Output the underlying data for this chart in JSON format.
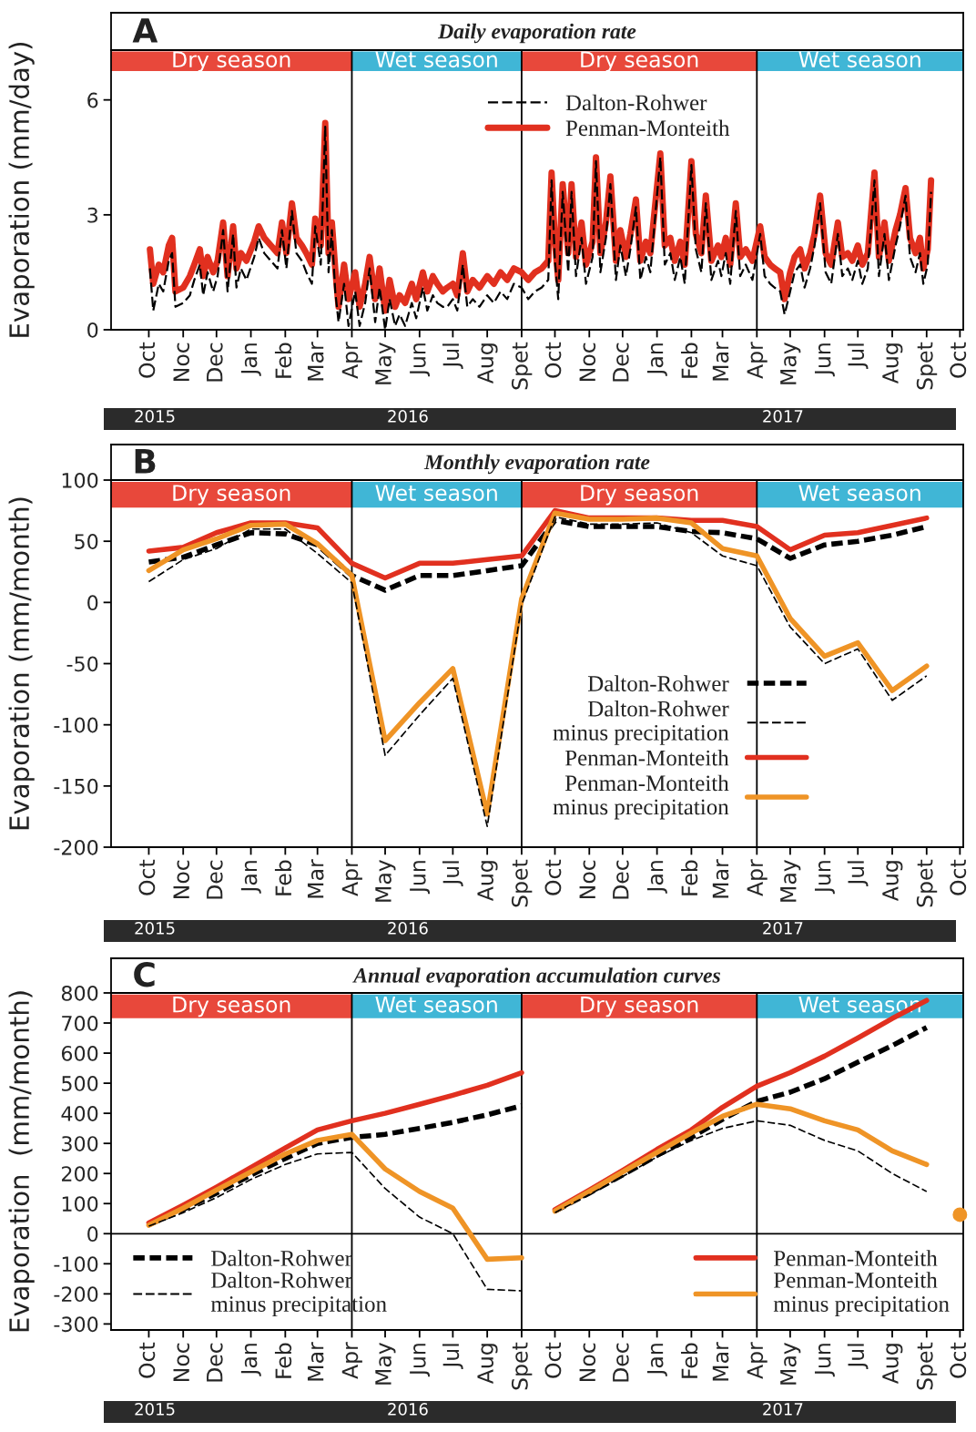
{
  "chart_data": [
    {
      "type": "line",
      "title": "Daily evaporation rate",
      "ylabel": "Evaporation (mm/day)",
      "annotations": [
        "A"
      ],
      "legend": "top right",
      "x": [
        "2015-10-02",
        "2015-10-05",
        "2015-10-10",
        "2015-10-14",
        "2015-10-19",
        "2015-10-22",
        "2015-10-25",
        "2015-11-01",
        "2015-11-07",
        "2015-11-11",
        "2015-11-16",
        "2015-11-19",
        "2015-11-23",
        "2015-11-28",
        "2015-12-02",
        "2015-12-07",
        "2015-12-11",
        "2015-12-16",
        "2015-12-19",
        "2015-12-23",
        "2015-12-28",
        "2016-01-04",
        "2016-01-08",
        "2016-01-13",
        "2016-01-19",
        "2016-01-25",
        "2016-01-29",
        "2016-02-02",
        "2016-02-07",
        "2016-02-11",
        "2016-02-16",
        "2016-02-20",
        "2016-02-25",
        "2016-02-28",
        "2016-03-04",
        "2016-03-08",
        "2016-03-11",
        "2016-03-14",
        "2016-03-17",
        "2016-03-20",
        "2016-03-25",
        "2016-03-29",
        "2016-04-04",
        "2016-04-08",
        "2016-04-13",
        "2016-04-17",
        "2016-04-22",
        "2016-04-26",
        "2016-05-01",
        "2016-05-05",
        "2016-05-10",
        "2016-05-14",
        "2016-05-19",
        "2016-05-25",
        "2016-05-29",
        "2016-06-04",
        "2016-06-08",
        "2016-06-13",
        "2016-06-17",
        "2016-06-22",
        "2016-06-26",
        "2016-07-01",
        "2016-07-05",
        "2016-07-10",
        "2016-07-14",
        "2016-07-19",
        "2016-07-25",
        "2016-08-01",
        "2016-08-07",
        "2016-08-13",
        "2016-08-19",
        "2016-08-25",
        "2016-09-01",
        "2016-09-07",
        "2016-09-13",
        "2016-09-19",
        "2016-09-25",
        "2016-09-28",
        "2016-10-01",
        "2016-10-04",
        "2016-10-08",
        "2016-10-13",
        "2016-10-16",
        "2016-10-20",
        "2016-10-25",
        "2016-10-29",
        "2016-11-04",
        "2016-11-07",
        "2016-11-11",
        "2016-11-16",
        "2016-11-20",
        "2016-11-25",
        "2016-11-29",
        "2016-12-04",
        "2016-12-08",
        "2016-12-13",
        "2016-12-17",
        "2016-12-22",
        "2016-12-26",
        "2017-01-04",
        "2017-01-08",
        "2017-01-13",
        "2017-01-17",
        "2017-01-22",
        "2017-01-26",
        "2017-02-01",
        "2017-02-05",
        "2017-02-10",
        "2017-02-14",
        "2017-02-19",
        "2017-02-25",
        "2017-02-28",
        "2017-03-04",
        "2017-03-08",
        "2017-03-13",
        "2017-03-17",
        "2017-03-22",
        "2017-03-28",
        "2017-04-04",
        "2017-04-08",
        "2017-04-13",
        "2017-04-17",
        "2017-04-22",
        "2017-04-26",
        "2017-05-01",
        "2017-05-05",
        "2017-05-10",
        "2017-05-14",
        "2017-05-19",
        "2017-05-23",
        "2017-05-28",
        "2017-06-02",
        "2017-06-07",
        "2017-06-13",
        "2017-06-17",
        "2017-06-22",
        "2017-06-26",
        "2017-07-01",
        "2017-07-05",
        "2017-07-10",
        "2017-07-16",
        "2017-07-20",
        "2017-07-25",
        "2017-07-29",
        "2017-08-04",
        "2017-08-08",
        "2017-08-13",
        "2017-08-17",
        "2017-08-22",
        "2017-08-26",
        "2017-08-29",
        "2017-09-02",
        "2017-09-05"
      ],
      "series": [
        {
          "name": "Dalton-Rohwer",
          "color": "#000000",
          "line_style": "dashed",
          "values": [
            1.6,
            0.5,
            1.2,
            1.0,
            1.8,
            2.0,
            0.6,
            0.7,
            0.9,
            1.3,
            1.7,
            0.9,
            1.5,
            1.0,
            1.4,
            2.6,
            1.0,
            2.5,
            1.1,
            1.6,
            1.3,
            1.9,
            2.4,
            2.0,
            1.8,
            1.6,
            2.6,
            1.6,
            3.1,
            2.0,
            1.8,
            1.5,
            1.2,
            2.7,
            1.7,
            5.3,
            1.5,
            2.6,
            1.0,
            0.2,
            1.2,
            0.1,
            1.0,
            0.1,
            0.7,
            1.6,
            0.2,
            1.1,
            0.0,
            0.8,
            0.1,
            0.4,
            0.1,
            0.7,
            0.3,
            1.1,
            0.5,
            0.9,
            0.7,
            0.6,
            0.6,
            0.8,
            0.5,
            1.7,
            0.6,
            0.8,
            0.6,
            0.9,
            0.7,
            1.0,
            0.8,
            1.2,
            1.1,
            0.8,
            1.0,
            1.1,
            1.3,
            3.9,
            1.8,
            0.8,
            3.6,
            1.5,
            3.6,
            1.4,
            2.4,
            1.2,
            1.9,
            4.4,
            1.5,
            2.4,
            3.8,
            1.3,
            2.2,
            1.4,
            2.1,
            3.2,
            1.3,
            1.9,
            1.5,
            4.5,
            1.7,
            2.0,
            1.3,
            1.9,
            1.2,
            4.3,
            2.1,
            1.5,
            3.3,
            1.3,
            1.8,
            1.4,
            2.0,
            1.2,
            3.1,
            1.4,
            1.7,
            1.3,
            2.5,
            1.4,
            1.2,
            1.1,
            1.0,
            0.4,
            1.0,
            1.5,
            1.7,
            1.1,
            1.6,
            2.2,
            3.3,
            1.5,
            1.2,
            2.5,
            1.4,
            1.6,
            1.3,
            1.8,
            1.2,
            1.6,
            3.9,
            1.4,
            2.5,
            1.3,
            2.2,
            2.7,
            3.5,
            1.9,
            1.5,
            2.0,
            1.2,
            1.7,
            3.6
          ]
        },
        {
          "name": "Penman-Monteith",
          "color": "#e1301f",
          "line_style": "solid",
          "values": [
            2.1,
            1.2,
            1.7,
            1.5,
            2.2,
            2.4,
            1.0,
            1.1,
            1.4,
            1.7,
            2.1,
            1.4,
            1.9,
            1.5,
            1.8,
            2.8,
            1.4,
            2.7,
            1.6,
            2.0,
            1.8,
            2.3,
            2.7,
            2.4,
            2.2,
            2.0,
            2.8,
            2.0,
            3.3,
            2.4,
            2.2,
            2.0,
            1.7,
            2.9,
            2.2,
            5.4,
            2.0,
            2.8,
            1.6,
            0.6,
            1.7,
            0.8,
            1.5,
            0.6,
            1.2,
            1.9,
            0.8,
            1.6,
            0.5,
            1.3,
            0.6,
            0.9,
            0.7,
            1.2,
            0.8,
            1.5,
            1.0,
            1.4,
            1.2,
            1.0,
            1.1,
            1.2,
            0.9,
            2.0,
            1.0,
            1.3,
            1.1,
            1.4,
            1.2,
            1.5,
            1.3,
            1.6,
            1.5,
            1.3,
            1.5,
            1.6,
            1.8,
            4.1,
            2.3,
            1.3,
            3.8,
            2.0,
            3.8,
            1.9,
            2.8,
            1.7,
            2.3,
            4.5,
            2.0,
            2.8,
            4.0,
            1.8,
            2.6,
            1.9,
            2.5,
            3.4,
            1.8,
            2.3,
            2.0,
            4.6,
            2.2,
            2.4,
            1.8,
            2.3,
            1.7,
            4.4,
            2.5,
            2.0,
            3.5,
            1.8,
            2.2,
            1.9,
            2.4,
            1.7,
            3.3,
            1.9,
            2.1,
            1.8,
            2.7,
            1.9,
            1.7,
            1.6,
            1.5,
            0.8,
            1.5,
            1.9,
            2.1,
            1.6,
            2.0,
            2.5,
            3.5,
            2.0,
            1.7,
            2.8,
            1.9,
            2.0,
            1.8,
            2.2,
            1.7,
            2.0,
            4.1,
            1.9,
            2.8,
            1.8,
            2.6,
            3.0,
            3.7,
            2.4,
            2.0,
            2.4,
            1.6,
            2.1,
            3.9
          ]
        }
      ],
      "xlim": [
        "2015-08-28",
        "2017-10-04"
      ],
      "xticks": [
        {
          "value": "2015-10-01",
          "label": "Oct"
        },
        {
          "value": "2015-11-01",
          "label": "Noc"
        },
        {
          "value": "2015-12-01",
          "label": "Dec"
        },
        {
          "value": "2016-01-01",
          "label": "Jan"
        },
        {
          "value": "2016-02-01",
          "label": "Feb"
        },
        {
          "value": "2016-03-01",
          "label": "Mar"
        },
        {
          "value": "2016-04-01",
          "label": "Apr"
        },
        {
          "value": "2016-05-01",
          "label": "May"
        },
        {
          "value": "2016-06-01",
          "label": "Jun"
        },
        {
          "value": "2016-07-01",
          "label": "Jul"
        },
        {
          "value": "2016-08-01",
          "label": "Aug"
        },
        {
          "value": "2016-09-01",
          "label": "Spet"
        },
        {
          "value": "2016-10-01",
          "label": "Oct"
        },
        {
          "value": "2016-11-01",
          "label": "Noc"
        },
        {
          "value": "2016-12-01",
          "label": "Dec"
        },
        {
          "value": "2017-01-01",
          "label": "Jan"
        },
        {
          "value": "2017-02-01",
          "label": "Feb"
        },
        {
          "value": "2017-03-01",
          "label": "Mar"
        },
        {
          "value": "2017-04-01",
          "label": "Apr"
        },
        {
          "value": "2017-05-01",
          "label": "May"
        },
        {
          "value": "2017-06-01",
          "label": "Jun"
        },
        {
          "value": "2017-07-01",
          "label": "Jul"
        },
        {
          "value": "2017-08-01",
          "label": "Aug"
        },
        {
          "value": "2017-09-01",
          "label": "Spet"
        },
        {
          "value": "2017-10-01",
          "label": "Oct"
        }
      ],
      "x2lim": [
        "2015-08-28",
        "2017-10-04"
      ],
      "x2ticks": [
        {
          "value": "2015-10-13",
          "label": "2015"
        },
        {
          "value": "2016-05-28",
          "label": "2016"
        },
        {
          "value": "2017-05-01",
          "label": "2017"
        }
      ],
      "ylim": [
        0,
        7.3
      ],
      "yticks": [
        0,
        3,
        6
      ],
      "bands": [
        {
          "axis": "x",
          "from": "2015-08-28",
          "to": "2016-04-01",
          "label": "Dry season",
          "color": "#e8483b"
        },
        {
          "axis": "x",
          "from": "2016-04-01",
          "to": "2016-09-01",
          "label": "Wet season",
          "color": "#40b6d6"
        },
        {
          "axis": "x",
          "from": "2016-09-01",
          "to": "2017-04-01",
          "label": "Dry season",
          "color": "#e8483b"
        },
        {
          "axis": "x",
          "from": "2017-04-01",
          "to": "2017-10-04",
          "label": "Wet season",
          "color": "#40b6d6"
        }
      ],
      "ref_lines": [
        {
          "axis": "x",
          "value": "2016-04-01",
          "color": "#000000"
        },
        {
          "axis": "x",
          "value": "2016-09-01",
          "color": "#000000"
        },
        {
          "axis": "x",
          "value": "2017-04-01",
          "color": "#000000"
        }
      ]
    },
    {
      "type": "line",
      "title": "Monthly evaporation rate",
      "ylabel": "Evaporation (mm/month)",
      "annotations": [
        "B"
      ],
      "legend": "bottom right",
      "x": [
        "2015-10-01",
        "2015-11-01",
        "2015-12-01",
        "2016-01-01",
        "2016-02-01",
        "2016-03-01",
        "2016-04-01",
        "2016-05-01",
        "2016-06-01",
        "2016-07-01",
        "2016-08-01",
        "2016-09-01",
        "2016-10-01",
        "2016-11-01",
        "2016-12-01",
        "2017-01-01",
        "2017-02-01",
        "2017-03-01",
        "2017-04-01",
        "2017-05-01",
        "2017-06-01",
        "2017-07-01",
        "2017-08-01",
        "2017-09-01"
      ],
      "series": [
        {
          "name": "Dalton-Rohwer",
          "color": "#000000",
          "line_style": "dashed",
          "values": [
            33,
            37,
            47,
            57,
            56,
            47,
            22,
            10,
            22,
            22,
            26,
            30,
            67,
            62,
            62,
            62,
            58,
            57,
            52,
            36,
            47,
            50,
            55,
            62
          ]
        },
        {
          "name": "Dalton-Rohwer\nminus precipitation",
          "color": "#000000",
          "line_style": "dashed",
          "values": [
            17,
            35,
            44,
            60,
            60,
            40,
            16,
            -125,
            -92,
            -62,
            -183,
            -2,
            70,
            64,
            64,
            65,
            57,
            38,
            30,
            -20,
            -50,
            -38,
            -80,
            -60
          ]
        },
        {
          "name": "Penman-Monteith",
          "color": "#e1301f",
          "line_style": "solid",
          "values": [
            42,
            45,
            57,
            65,
            65,
            61,
            32,
            20,
            32,
            32,
            35,
            38,
            75,
            69,
            69,
            69,
            67,
            67,
            62,
            43,
            55,
            57,
            63,
            69
          ]
        },
        {
          "name": "Penman-Monteith\nminus precipitation",
          "color": "#ef9426",
          "line_style": "solid",
          "values": [
            26,
            43,
            52,
            63,
            64,
            48,
            22,
            -113,
            -82,
            -54,
            -173,
            3,
            73,
            68,
            68,
            69,
            65,
            44,
            38,
            -13,
            -44,
            -33,
            -72,
            -52
          ]
        }
      ],
      "xlim": [
        "2015-08-28",
        "2017-10-04"
      ],
      "xticks": [
        {
          "value": "2015-10-01",
          "label": "Oct"
        },
        {
          "value": "2015-11-01",
          "label": "Noc"
        },
        {
          "value": "2015-12-01",
          "label": "Dec"
        },
        {
          "value": "2016-01-01",
          "label": "Jan"
        },
        {
          "value": "2016-02-01",
          "label": "Feb"
        },
        {
          "value": "2016-03-01",
          "label": "Mar"
        },
        {
          "value": "2016-04-01",
          "label": "Apr"
        },
        {
          "value": "2016-05-01",
          "label": "May"
        },
        {
          "value": "2016-06-01",
          "label": "Jun"
        },
        {
          "value": "2016-07-01",
          "label": "Jul"
        },
        {
          "value": "2016-08-01",
          "label": "Aug"
        },
        {
          "value": "2016-09-01",
          "label": "Spet"
        },
        {
          "value": "2016-10-01",
          "label": "Oct"
        },
        {
          "value": "2016-11-01",
          "label": "Noc"
        },
        {
          "value": "2016-12-01",
          "label": "Dec"
        },
        {
          "value": "2017-01-01",
          "label": "Jan"
        },
        {
          "value": "2017-02-01",
          "label": "Feb"
        },
        {
          "value": "2017-03-01",
          "label": "Mar"
        },
        {
          "value": "2017-04-01",
          "label": "Apr"
        },
        {
          "value": "2017-05-01",
          "label": "May"
        },
        {
          "value": "2017-06-01",
          "label": "Jun"
        },
        {
          "value": "2017-07-01",
          "label": "Jul"
        },
        {
          "value": "2017-08-01",
          "label": "Aug"
        },
        {
          "value": "2017-09-01",
          "label": "Spet"
        },
        {
          "value": "2017-10-01",
          "label": "Oct"
        }
      ],
      "x2lim": [
        "2015-08-28",
        "2017-10-04"
      ],
      "x2ticks": [
        {
          "value": "2015-10-13",
          "label": "2015"
        },
        {
          "value": "2016-05-28",
          "label": "2016"
        },
        {
          "value": "2017-05-01",
          "label": "2017"
        }
      ],
      "ylim": [
        -200,
        100
      ],
      "yticks": [
        -200,
        -150,
        -100,
        -50,
        0,
        50,
        100
      ],
      "bands": [
        {
          "axis": "x",
          "from": "2015-08-28",
          "to": "2016-04-01",
          "label": "Dry season",
          "color": "#e8483b"
        },
        {
          "axis": "x",
          "from": "2016-04-01",
          "to": "2016-09-01",
          "label": "Wet season",
          "color": "#40b6d6"
        },
        {
          "axis": "x",
          "from": "2016-09-01",
          "to": "2017-04-01",
          "label": "Dry season",
          "color": "#e8483b"
        },
        {
          "axis": "x",
          "from": "2017-04-01",
          "to": "2017-10-04",
          "label": "Wet season",
          "color": "#40b6d6"
        }
      ],
      "ref_lines": [
        {
          "axis": "x",
          "value": "2016-04-01",
          "color": "#000000"
        },
        {
          "axis": "x",
          "value": "2016-09-01",
          "color": "#000000"
        },
        {
          "axis": "x",
          "value": "2017-04-01",
          "color": "#000000"
        }
      ]
    },
    {
      "type": "line",
      "title": "Annual evaporation accumulation curves",
      "ylabel": "Evaporation  (mm/month)",
      "annotations": [
        "C"
      ],
      "legend": "bottom",
      "series": [
        {
          "name": "Dalton-Rohwer",
          "color": "#000000",
          "line_style": "dashed",
          "x": [
            "2015-10-01",
            "2015-11-01",
            "2015-12-01",
            "2016-01-01",
            "2016-02-01",
            "2016-03-01",
            "2016-04-01",
            "2016-05-01",
            "2016-06-01",
            "2016-07-01",
            "2016-08-01",
            "2016-09-01"
          ],
          "values": [
            30,
            80,
            135,
            195,
            250,
            300,
            320,
            330,
            350,
            370,
            395,
            425
          ]
        },
        {
          "name": "Dalton-Rohwer\nminus precipitation",
          "color": "#000000",
          "line_style": "dashed",
          "x": [
            "2015-10-01",
            "2015-11-01",
            "2015-12-01",
            "2016-01-01",
            "2016-02-01",
            "2016-03-01",
            "2016-04-01",
            "2016-05-01",
            "2016-06-01",
            "2016-07-01",
            "2016-08-01",
            "2016-09-01"
          ],
          "values": [
            25,
            70,
            120,
            180,
            230,
            265,
            270,
            150,
            55,
            0,
            -185,
            -190
          ]
        },
        {
          "name": "Penman-Monteith",
          "color": "#e1301f",
          "line_style": "solid",
          "x": [
            "2015-10-01",
            "2015-11-01",
            "2015-12-01",
            "2016-01-01",
            "2016-02-01",
            "2016-03-01",
            "2016-04-01",
            "2016-05-01",
            "2016-06-01",
            "2016-07-01",
            "2016-08-01",
            "2016-09-01"
          ],
          "values": [
            36,
            95,
            155,
            220,
            285,
            345,
            375,
            400,
            430,
            460,
            493,
            535
          ]
        },
        {
          "name": "Penman-Monteith\nminus precipitation",
          "color": "#ef9426",
          "line_style": "solid",
          "x": [
            "2015-10-01",
            "2015-11-01",
            "2015-12-01",
            "2016-01-01",
            "2016-02-01",
            "2016-03-01",
            "2016-04-01",
            "2016-05-01",
            "2016-06-01",
            "2016-07-01",
            "2016-08-01",
            "2016-09-01"
          ],
          "values": [
            28,
            85,
            145,
            205,
            265,
            310,
            330,
            215,
            140,
            85,
            -85,
            -80
          ]
        },
        {
          "color": "#000000",
          "line_style": "dashed",
          "x": [
            "2016-10-01",
            "2016-11-01",
            "2016-12-01",
            "2017-01-01",
            "2017-02-01",
            "2017-03-01",
            "2017-04-01",
            "2017-05-01",
            "2017-06-01",
            "2017-07-01",
            "2017-08-01",
            "2017-09-01"
          ],
          "values": [
            75,
            135,
            195,
            260,
            320,
            380,
            440,
            470,
            515,
            570,
            625,
            685
          ]
        },
        {
          "color": "#000000",
          "line_style": "dashed",
          "x": [
            "2016-10-01",
            "2016-11-01",
            "2016-12-01",
            "2017-01-01",
            "2017-02-01",
            "2017-03-01",
            "2017-04-01",
            "2017-05-01",
            "2017-06-01",
            "2017-07-01",
            "2017-08-01",
            "2017-09-01"
          ],
          "values": [
            70,
            130,
            190,
            255,
            310,
            350,
            375,
            360,
            310,
            275,
            200,
            140
          ]
        },
        {
          "color": "#e1301f",
          "line_style": "solid",
          "x": [
            "2016-10-01",
            "2016-11-01",
            "2016-12-01",
            "2017-01-01",
            "2017-02-01",
            "2017-03-01",
            "2017-04-01",
            "2017-05-01",
            "2017-06-01",
            "2017-07-01",
            "2017-08-01",
            "2017-09-01"
          ],
          "values": [
            80,
            145,
            210,
            280,
            345,
            420,
            490,
            535,
            590,
            650,
            715,
            775
          ]
        },
        {
          "color": "#ef9426",
          "line_style": "solid",
          "x": [
            "2016-10-01",
            "2016-11-01",
            "2016-12-01",
            "2017-01-01",
            "2017-02-01",
            "2017-03-01",
            "2017-04-01",
            "2017-05-01",
            "2017-06-01",
            "2017-07-01",
            "2017-08-01",
            "2017-09-01"
          ],
          "values": [
            75,
            140,
            205,
            270,
            335,
            390,
            430,
            415,
            375,
            345,
            275,
            230
          ]
        },
        {
          "type": "scatter",
          "color": "#ef9426",
          "x": [
            "2017-10-01"
          ],
          "values": [
            63
          ]
        }
      ],
      "xlim": [
        "2015-08-28",
        "2017-10-04"
      ],
      "xticks": [
        {
          "value": "2015-10-01",
          "label": "Oct"
        },
        {
          "value": "2015-11-01",
          "label": "Noc"
        },
        {
          "value": "2015-12-01",
          "label": "Dec"
        },
        {
          "value": "2016-01-01",
          "label": "Jan"
        },
        {
          "value": "2016-02-01",
          "label": "Feb"
        },
        {
          "value": "2016-03-01",
          "label": "Mar"
        },
        {
          "value": "2016-04-01",
          "label": "Apr"
        },
        {
          "value": "2016-05-01",
          "label": "May"
        },
        {
          "value": "2016-06-01",
          "label": "Jun"
        },
        {
          "value": "2016-07-01",
          "label": "Jul"
        },
        {
          "value": "2016-08-01",
          "label": "Aug"
        },
        {
          "value": "2016-09-01",
          "label": "Spet"
        },
        {
          "value": "2016-10-01",
          "label": "Oct"
        },
        {
          "value": "2016-11-01",
          "label": "Noc"
        },
        {
          "value": "2016-12-01",
          "label": "Dec"
        },
        {
          "value": "2017-01-01",
          "label": "Jan"
        },
        {
          "value": "2017-02-01",
          "label": "Feb"
        },
        {
          "value": "2017-03-01",
          "label": "Mar"
        },
        {
          "value": "2017-04-01",
          "label": "Apr"
        },
        {
          "value": "2017-05-01",
          "label": "May"
        },
        {
          "value": "2017-06-01",
          "label": "Jun"
        },
        {
          "value": "2017-07-01",
          "label": "Jul"
        },
        {
          "value": "2017-08-01",
          "label": "Aug"
        },
        {
          "value": "2017-09-01",
          "label": "Spet"
        },
        {
          "value": "2017-10-01",
          "label": "Oct"
        }
      ],
      "x2lim": [
        "2015-08-28",
        "2017-10-04"
      ],
      "x2ticks": [
        {
          "value": "2015-10-13",
          "label": "2015"
        },
        {
          "value": "2016-05-28",
          "label": "2016"
        },
        {
          "value": "2017-05-01",
          "label": "2017"
        }
      ],
      "ylim": [
        -320,
        800
      ],
      "yticks": [
        -300,
        -200,
        -100,
        0,
        100,
        200,
        300,
        400,
        500,
        600,
        700,
        800
      ],
      "bands": [
        {
          "axis": "x",
          "from": "2015-08-28",
          "to": "2016-04-01",
          "label": "Dry season",
          "color": "#e8483b"
        },
        {
          "axis": "x",
          "from": "2016-04-01",
          "to": "2016-09-01",
          "label": "Wet season",
          "color": "#40b6d6"
        },
        {
          "axis": "x",
          "from": "2016-09-01",
          "to": "2017-04-01",
          "label": "Dry season",
          "color": "#e8483b"
        },
        {
          "axis": "x",
          "from": "2017-04-01",
          "to": "2017-10-04",
          "label": "Wet season",
          "color": "#40b6d6"
        }
      ],
      "ref_lines": [
        {
          "axis": "x",
          "value": "2016-04-01",
          "color": "#000000"
        },
        {
          "axis": "x",
          "value": "2016-09-01",
          "color": "#000000"
        },
        {
          "axis": "x",
          "value": "2017-04-01",
          "color": "#000000"
        },
        {
          "axis": "y",
          "value": 0,
          "color": "#000000"
        }
      ]
    }
  ]
}
